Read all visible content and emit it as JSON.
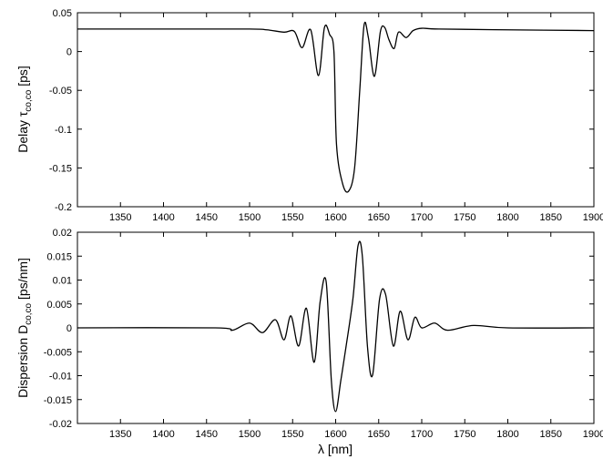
{
  "chart_data": [
    {
      "type": "line",
      "xlabel": "",
      "ylabel": "Delay τ",
      "ylabel_sub": "co,co",
      "ylabel_unit": " [ps]",
      "xlim": [
        1300,
        1900
      ],
      "ylim": [
        -0.2,
        0.05
      ],
      "xticks": [
        1350,
        1400,
        1450,
        1500,
        1550,
        1600,
        1650,
        1700,
        1750,
        1800,
        1850,
        1900
      ],
      "yticks": [
        -0.2,
        -0.15,
        -0.1,
        -0.05,
        0,
        0.05
      ],
      "yticklabels": [
        "-0.2",
        "-0.15",
        "-0.1",
        "-0.05",
        "0",
        "0.05"
      ],
      "grid": false,
      "series": [
        {
          "x": [
            1300,
            1400,
            1500,
            1520,
            1540,
            1552,
            1561,
            1571,
            1580,
            1587,
            1593,
            1598,
            1601,
            1608,
            1615,
            1622,
            1628,
            1633,
            1638,
            1645,
            1652,
            1657,
            1662,
            1668,
            1673,
            1682,
            1690,
            1700,
            1720,
            1800,
            1900
          ],
          "y": [
            0.029,
            0.029,
            0.029,
            0.028,
            0.025,
            0.026,
            0.005,
            0.028,
            -0.031,
            0.031,
            0.022,
            0.0,
            -0.12,
            -0.17,
            -0.18,
            -0.15,
            -0.05,
            0.034,
            0.018,
            -0.032,
            0.026,
            0.031,
            0.015,
            0.004,
            0.025,
            0.018,
            0.027,
            0.03,
            0.029,
            0.028,
            0.027
          ]
        }
      ]
    },
    {
      "type": "line",
      "xlabel": "λ [nm]",
      "ylabel": "Dispersion D",
      "ylabel_sub": "co,co",
      "ylabel_unit": " [ps/nm]",
      "xlim": [
        1300,
        1900
      ],
      "ylim": [
        -0.02,
        0.02
      ],
      "xticks": [
        1350,
        1400,
        1450,
        1500,
        1550,
        1600,
        1650,
        1700,
        1750,
        1800,
        1850,
        1900
      ],
      "yticks": [
        -0.02,
        -0.015,
        -0.01,
        -0.005,
        0,
        0.005,
        0.01,
        0.015,
        0.02
      ],
      "yticklabels": [
        "-0.02",
        "-0.015",
        "-0.01",
        "-0.005",
        "0",
        "0.005",
        "0.01",
        "0.015",
        "0.02"
      ],
      "grid": false,
      "series": [
        {
          "x": [
            1300,
            1460,
            1480,
            1500,
            1515,
            1530,
            1540,
            1548,
            1557,
            1566,
            1575,
            1582,
            1589,
            1595,
            1600,
            1606,
            1612,
            1620,
            1626,
            1631,
            1637,
            1643,
            1651,
            1658,
            1667,
            1675,
            1684,
            1692,
            1700,
            1715,
            1730,
            1760,
            1800,
            1900
          ],
          "y": [
            0.0,
            0.0,
            -0.0005,
            0.001,
            -0.001,
            0.0017,
            -0.0025,
            0.0025,
            -0.0038,
            0.0041,
            -0.0072,
            0.0055,
            0.0096,
            -0.011,
            -0.0175,
            -0.011,
            -0.004,
            0.006,
            0.0172,
            0.015,
            -0.004,
            -0.0098,
            0.006,
            0.007,
            -0.0038,
            0.0035,
            -0.0025,
            0.0022,
            0.0,
            0.001,
            -0.0005,
            0.0005,
            0.0,
            0.0
          ]
        }
      ]
    }
  ]
}
